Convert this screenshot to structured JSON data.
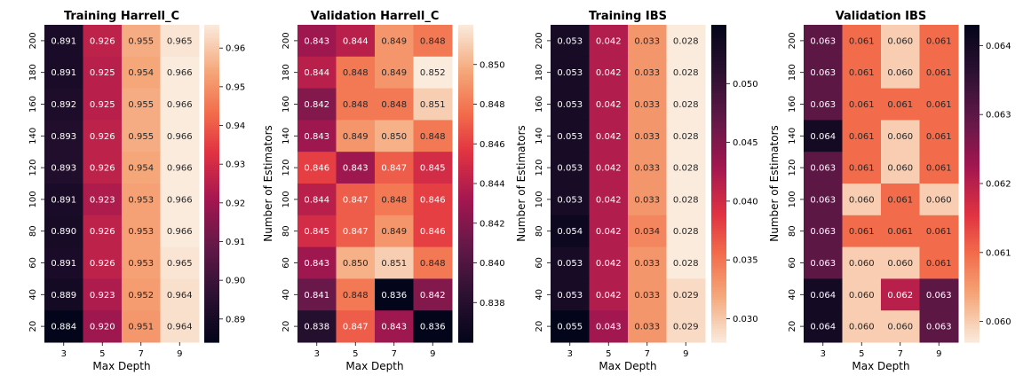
{
  "chart_data": [
    {
      "type": "heatmap",
      "title": "Training Harrell_C",
      "xlabel": "Max Depth",
      "ylabel": "",
      "x_categories": [
        "3",
        "5",
        "7",
        "9"
      ],
      "y_categories": [
        "200",
        "180",
        "160",
        "140",
        "120",
        "100",
        "80",
        "60",
        "40",
        "20"
      ],
      "values": [
        [
          0.891,
          0.926,
          0.955,
          0.965
        ],
        [
          0.891,
          0.925,
          0.954,
          0.966
        ],
        [
          0.892,
          0.925,
          0.955,
          0.966
        ],
        [
          0.893,
          0.926,
          0.955,
          0.966
        ],
        [
          0.893,
          0.926,
          0.954,
          0.966
        ],
        [
          0.891,
          0.923,
          0.953,
          0.966
        ],
        [
          0.89,
          0.926,
          0.953,
          0.966
        ],
        [
          0.891,
          0.926,
          0.953,
          0.965
        ],
        [
          0.889,
          0.923,
          0.952,
          0.964
        ],
        [
          0.884,
          0.92,
          0.951,
          0.964
        ]
      ],
      "colormap": "rocket",
      "reversed": false,
      "colorbar_range": [
        0.884,
        0.966
      ],
      "colorbar_ticks": [
        "0.89",
        "0.90",
        "0.91",
        "0.92",
        "0.93",
        "0.94",
        "0.95",
        "0.96"
      ]
    },
    {
      "type": "heatmap",
      "title": "Validation Harrell_C",
      "xlabel": "Max Depth",
      "ylabel": "Number of Estimators",
      "x_categories": [
        "3",
        "5",
        "7",
        "9"
      ],
      "y_categories": [
        "200",
        "180",
        "160",
        "140",
        "120",
        "100",
        "80",
        "60",
        "40",
        "20"
      ],
      "values": [
        [
          0.843,
          0.844,
          0.849,
          0.848
        ],
        [
          0.844,
          0.848,
          0.849,
          0.852
        ],
        [
          0.842,
          0.848,
          0.848,
          0.851
        ],
        [
          0.843,
          0.849,
          0.85,
          0.848
        ],
        [
          0.846,
          0.843,
          0.847,
          0.845
        ],
        [
          0.844,
          0.847,
          0.848,
          0.846
        ],
        [
          0.845,
          0.847,
          0.849,
          0.846
        ],
        [
          0.843,
          0.85,
          0.851,
          0.848
        ],
        [
          0.841,
          0.848,
          0.836,
          0.842
        ],
        [
          0.838,
          0.847,
          0.843,
          0.836
        ]
      ],
      "colormap": "rocket",
      "reversed": false,
      "colorbar_range": [
        0.836,
        0.852
      ],
      "colorbar_ticks": [
        "0.838",
        "0.840",
        "0.842",
        "0.844",
        "0.846",
        "0.848",
        "0.850"
      ]
    },
    {
      "type": "heatmap",
      "title": "Training IBS",
      "xlabel": "Max Depth",
      "ylabel": "Number of Estimators",
      "x_categories": [
        "3",
        "5",
        "7",
        "9"
      ],
      "y_categories": [
        "200",
        "180",
        "160",
        "140",
        "120",
        "100",
        "80",
        "60",
        "40",
        "20"
      ],
      "values": [
        [
          0.053,
          0.042,
          0.033,
          0.028
        ],
        [
          0.053,
          0.042,
          0.033,
          0.028
        ],
        [
          0.053,
          0.042,
          0.033,
          0.028
        ],
        [
          0.053,
          0.042,
          0.033,
          0.028
        ],
        [
          0.053,
          0.042,
          0.033,
          0.028
        ],
        [
          0.053,
          0.042,
          0.033,
          0.028
        ],
        [
          0.054,
          0.042,
          0.034,
          0.028
        ],
        [
          0.053,
          0.042,
          0.033,
          0.028
        ],
        [
          0.053,
          0.042,
          0.033,
          0.029
        ],
        [
          0.055,
          0.043,
          0.033,
          0.029
        ]
      ],
      "colormap": "rocket",
      "reversed": true,
      "colorbar_range": [
        0.028,
        0.055
      ],
      "colorbar_ticks": [
        "0.030",
        "0.035",
        "0.040",
        "0.045",
        "0.050"
      ]
    },
    {
      "type": "heatmap",
      "title": "Validation IBS",
      "xlabel": "Max Depth",
      "ylabel": "Number of Estimators",
      "x_categories": [
        "3",
        "5",
        "7",
        "9"
      ],
      "y_categories": [
        "200",
        "180",
        "160",
        "140",
        "120",
        "100",
        "80",
        "60",
        "40",
        "20"
      ],
      "values": [
        [
          0.063,
          0.061,
          0.06,
          0.061
        ],
        [
          0.063,
          0.061,
          0.06,
          0.061
        ],
        [
          0.063,
          0.061,
          0.061,
          0.061
        ],
        [
          0.064,
          0.061,
          0.06,
          0.061
        ],
        [
          0.063,
          0.061,
          0.06,
          0.061
        ],
        [
          0.063,
          0.06,
          0.061,
          0.06
        ],
        [
          0.063,
          0.061,
          0.061,
          0.061
        ],
        [
          0.063,
          0.06,
          0.06,
          0.061
        ],
        [
          0.064,
          0.06,
          0.062,
          0.063
        ],
        [
          0.064,
          0.06,
          0.06,
          0.063
        ]
      ],
      "colormap": "rocket",
      "reversed": true,
      "colorbar_range": [
        0.0597,
        0.0643
      ],
      "colorbar_ticks": [
        "0.060",
        "0.061",
        "0.062",
        "0.063",
        "0.064"
      ]
    }
  ]
}
